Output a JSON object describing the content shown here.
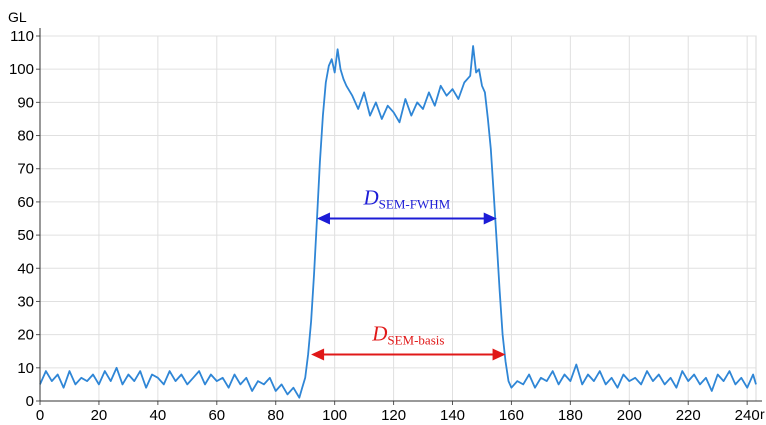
{
  "chart_data": {
    "type": "line",
    "ylabel": "GL",
    "xlabel": "r",
    "xlim": [
      0,
      243
    ],
    "ylim": [
      0,
      110
    ],
    "xticks": [
      0,
      20,
      40,
      60,
      80,
      100,
      120,
      140,
      160,
      180,
      200,
      220,
      240
    ],
    "yticks": [
      0,
      10,
      20,
      30,
      40,
      50,
      60,
      70,
      80,
      90,
      100,
      110
    ],
    "grid": true,
    "colors": {
      "line": "#2f86d6",
      "fwhm": "#1c1cd6",
      "basis": "#e01818",
      "grid": "#e0e0e0"
    },
    "series": [
      {
        "x": [
          0,
          2,
          4,
          6,
          8,
          10,
          12,
          14,
          16,
          18,
          20,
          22,
          24,
          26,
          28,
          30,
          32,
          34,
          36,
          38,
          40,
          42,
          44,
          46,
          48,
          50,
          52,
          54,
          56,
          58,
          60,
          62,
          64,
          66,
          68,
          70,
          72,
          74,
          76,
          78,
          80,
          82,
          84,
          86,
          88,
          89,
          90,
          91,
          92,
          93,
          94,
          95,
          96,
          97,
          98,
          99,
          100,
          101,
          102,
          103,
          104,
          106,
          108,
          110,
          112,
          114,
          116,
          118,
          120,
          122,
          124,
          126,
          128,
          130,
          132,
          134,
          136,
          138,
          140,
          142,
          144,
          146,
          147,
          148,
          149,
          150,
          151,
          152,
          153,
          154,
          155,
          156,
          157,
          158,
          159,
          160,
          162,
          164,
          166,
          168,
          170,
          172,
          174,
          176,
          178,
          180,
          182,
          184,
          186,
          188,
          190,
          192,
          194,
          196,
          198,
          200,
          202,
          204,
          206,
          208,
          210,
          212,
          214,
          216,
          218,
          220,
          222,
          224,
          226,
          228,
          230,
          232,
          234,
          236,
          238,
          240,
          242,
          243
        ],
        "y": [
          5,
          9,
          6,
          8,
          4,
          9,
          5,
          7,
          6,
          8,
          5,
          9,
          6,
          10,
          5,
          8,
          6,
          9,
          4,
          8,
          7,
          5,
          9,
          6,
          8,
          5,
          7,
          9,
          5,
          8,
          6,
          7,
          4,
          8,
          5,
          7,
          3,
          6,
          5,
          7,
          3,
          5,
          2,
          4,
          1,
          4,
          7,
          14,
          24,
          38,
          55,
          72,
          86,
          96,
          101,
          103,
          99,
          106,
          100,
          97,
          95,
          92,
          88,
          93,
          86,
          90,
          85,
          89,
          87,
          84,
          91,
          86,
          90,
          88,
          93,
          89,
          95,
          92,
          94,
          91,
          96,
          98,
          107,
          99,
          100,
          95,
          93,
          85,
          76,
          62,
          48,
          33,
          20,
          12,
          6,
          4,
          6,
          5,
          8,
          4,
          7,
          6,
          9,
          5,
          8,
          6,
          11,
          5,
          8,
          6,
          9,
          5,
          7,
          4,
          8,
          6,
          7,
          5,
          9,
          6,
          8,
          5,
          7,
          4,
          9,
          6,
          8,
          5,
          7,
          3,
          8,
          6,
          9,
          5,
          7,
          4,
          8,
          5
        ]
      }
    ],
    "annotations": [
      {
        "main": "D",
        "sub": "SEM-FWHM",
        "from": 94,
        "to": 155,
        "y": 55,
        "color": "fwhm"
      },
      {
        "main": "D",
        "sub": "SEM-basis",
        "from": 92,
        "to": 158,
        "y": 14,
        "color": "basis"
      }
    ]
  }
}
